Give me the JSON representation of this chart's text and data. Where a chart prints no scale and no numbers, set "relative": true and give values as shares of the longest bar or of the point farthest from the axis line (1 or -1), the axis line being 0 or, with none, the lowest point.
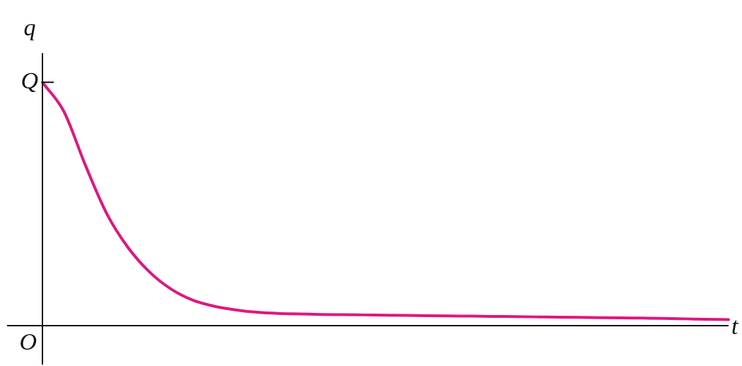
{
  "chart_data": {
    "type": "line",
    "xlabel": "t",
    "ylabel": "q",
    "relative": true,
    "categories": [
      null,
      null,
      null,
      null,
      null,
      null,
      null,
      null,
      null,
      null,
      null,
      null,
      null,
      null,
      null,
      null,
      null,
      null,
      null,
      null,
      null,
      null,
      null,
      null,
      null,
      null,
      null,
      null,
      null,
      null,
      null,
      null,
      null
    ],
    "series": [
      {
        "color": "#e0167f",
        "values": [
          1.0,
          0.88,
          0.66,
          0.46,
          0.32,
          0.22,
          0.15,
          0.105,
          0.08,
          0.065,
          0.055,
          0.05,
          0.048,
          0.046,
          0.045,
          0.044,
          0.043,
          0.042,
          0.041,
          0.04,
          0.039,
          0.038,
          0.037,
          0.036,
          0.035,
          0.034,
          0.033,
          0.032,
          0.031,
          0.03,
          0.028,
          0.026,
          0.025
        ]
      }
    ],
    "annotations": [
      "Q",
      "O"
    ],
    "grid": false,
    "legend": false,
    "marker": "none",
    "line_style": "solid"
  }
}
